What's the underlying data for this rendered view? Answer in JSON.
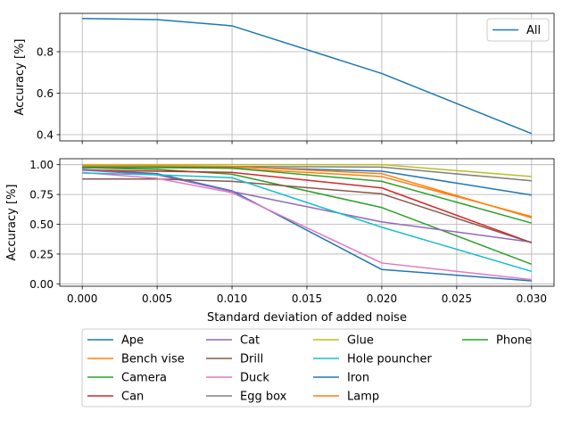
{
  "chart_data": [
    {
      "type": "line",
      "xlabel": "",
      "ylabel": "Accuracy [%]",
      "x": [
        0.0,
        0.005,
        0.01,
        0.02,
        0.03
      ],
      "xlim": [
        -0.0015,
        0.0315
      ],
      "ylim": [
        0.37,
        0.985
      ],
      "yticks": [
        0.4,
        0.6,
        0.8
      ],
      "ytick_labels": [
        "0.4",
        "0.6",
        "0.8"
      ],
      "grid": true,
      "legend_position": "top-right",
      "series": [
        {
          "name": "All",
          "color": "#1f77b4",
          "values": [
            0.96,
            0.955,
            0.925,
            0.695,
            0.405
          ]
        }
      ]
    },
    {
      "type": "line",
      "xlabel": "Standard deviation of added noise",
      "ylabel": "Accuracy [%]",
      "x": [
        0.0,
        0.005,
        0.01,
        0.02,
        0.03
      ],
      "xlim": [
        -0.0015,
        0.0315
      ],
      "ylim": [
        -0.02,
        1.05
      ],
      "xticks": [
        0.0,
        0.005,
        0.01,
        0.015,
        0.02,
        0.025,
        0.03
      ],
      "xtick_labels": [
        "0.000",
        "0.005",
        "0.010",
        "0.015",
        "0.020",
        "0.025",
        "0.030"
      ],
      "yticks": [
        0.0,
        0.25,
        0.5,
        0.75,
        1.0
      ],
      "ytick_labels": [
        "0.00",
        "0.25",
        "0.50",
        "0.75",
        "1.00"
      ],
      "grid": true,
      "legend_position": "below plot, 4 columns",
      "series": [
        {
          "name": "Ape",
          "color": "#1f77b4",
          "values": [
            0.96,
            0.925,
            0.78,
            0.12,
            0.025
          ]
        },
        {
          "name": "Bench vise",
          "color": "#ff7f0e",
          "values": [
            0.99,
            0.985,
            0.97,
            0.9,
            0.565
          ]
        },
        {
          "name": "Camera",
          "color": "#2ca02c",
          "values": [
            0.975,
            0.96,
            0.92,
            0.64,
            0.165
          ]
        },
        {
          "name": "Can",
          "color": "#d62728",
          "values": [
            0.955,
            0.945,
            0.935,
            0.805,
            0.345
          ]
        },
        {
          "name": "Cat",
          "color": "#9467bd",
          "values": [
            0.955,
            0.915,
            0.775,
            0.52,
            0.35
          ]
        },
        {
          "name": "Drill",
          "color": "#8c564b",
          "values": [
            0.88,
            0.88,
            0.86,
            0.755,
            0.345
          ]
        },
        {
          "name": "Duck",
          "color": "#e377c2",
          "values": [
            0.935,
            0.885,
            0.765,
            0.175,
            0.035
          ]
        },
        {
          "name": "Egg box",
          "color": "#7f7f7f",
          "values": [
            0.985,
            0.985,
            0.985,
            0.98,
            0.865
          ]
        },
        {
          "name": "Glue",
          "color": "#bcbd22",
          "values": [
            1.0,
            1.0,
            1.0,
            1.0,
            0.9
          ]
        },
        {
          "name": "Hole pouncher",
          "color": "#17becf",
          "values": [
            0.93,
            0.915,
            0.89,
            0.475,
            0.105
          ]
        },
        {
          "name": "Iron",
          "color": "#1f77b4",
          "values": [
            0.985,
            0.985,
            0.98,
            0.945,
            0.745
          ]
        },
        {
          "name": "Lamp",
          "color": "#ff7f0e",
          "values": [
            0.99,
            0.99,
            0.985,
            0.925,
            0.555
          ]
        },
        {
          "name": "Phone",
          "color": "#2ca02c",
          "values": [
            0.975,
            0.975,
            0.97,
            0.86,
            0.51
          ]
        }
      ]
    }
  ]
}
